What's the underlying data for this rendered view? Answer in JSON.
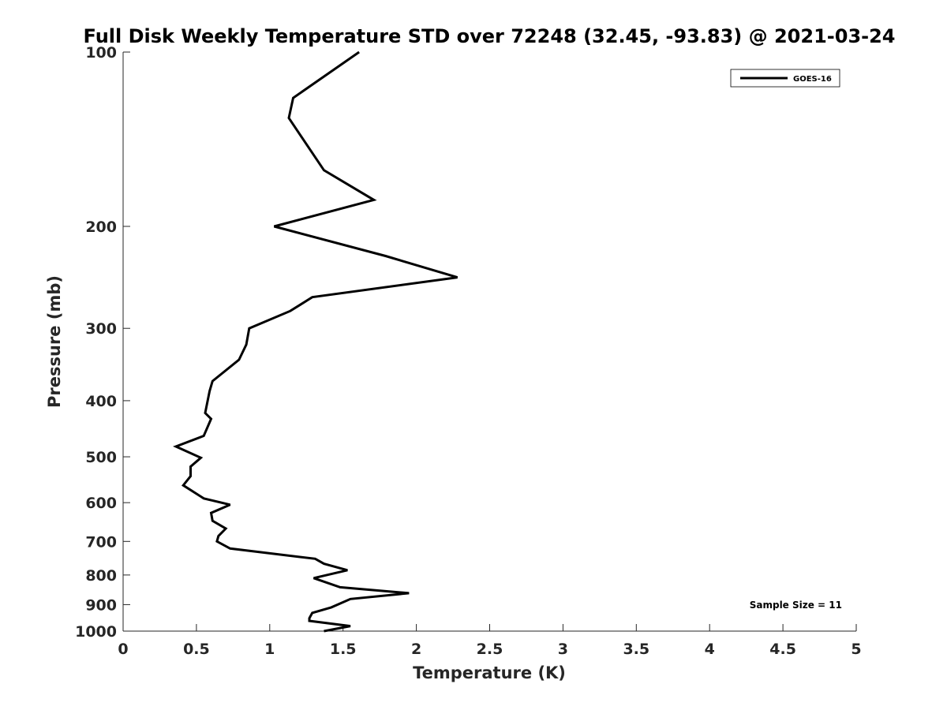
{
  "chart_data": {
    "type": "line",
    "title": "Full Disk Weekly Temperature STD over 72248 (32.45, -93.83) @ 2021-03-24",
    "xlabel": "Temperature (K)",
    "ylabel": "Pressure (mb)",
    "xlim": [
      0,
      5
    ],
    "ylim": [
      1000,
      100
    ],
    "y_scale": "log",
    "y_reversed": true,
    "grid": false,
    "legend_position": "top-right",
    "x_ticks": [
      0,
      0.5,
      1,
      1.5,
      2,
      2.5,
      3,
      3.5,
      4,
      4.5,
      5
    ],
    "x_tick_labels": [
      "0",
      "0.5",
      "1",
      "1.5",
      "2",
      "2.5",
      "3",
      "3.5",
      "4",
      "4.5",
      "5"
    ],
    "y_ticks": [
      100,
      200,
      300,
      400,
      500,
      600,
      700,
      800,
      900,
      1000
    ],
    "y_tick_labels": [
      "100",
      "200",
      "300",
      "400",
      "500",
      "600",
      "700",
      "800",
      "900",
      "1000"
    ],
    "series": [
      {
        "name": "GOES-16",
        "color": "#000000",
        "x": [
          1.61,
          1.16,
          1.13,
          1.37,
          1.71,
          1.03,
          1.79,
          2.28,
          1.29,
          1.14,
          0.86,
          0.84,
          0.79,
          0.61,
          0.59,
          0.56,
          0.6,
          0.55,
          0.36,
          0.53,
          0.46,
          0.46,
          0.41,
          0.55,
          0.73,
          0.6,
          0.61,
          0.7,
          0.65,
          0.64,
          0.73,
          1.31,
          1.37,
          1.53,
          1.3,
          1.48,
          1.95,
          1.55,
          1.42,
          1.29,
          1.27,
          1.27,
          1.55,
          1.37
        ],
        "y": [
          100,
          120,
          130,
          160,
          180,
          200,
          225,
          245,
          265,
          280,
          300,
          320,
          340,
          370,
          385,
          420,
          430,
          460,
          480,
          502,
          520,
          540,
          560,
          590,
          605,
          625,
          645,
          665,
          685,
          700,
          720,
          750,
          765,
          785,
          810,
          840,
          860,
          880,
          910,
          930,
          950,
          960,
          980,
          1000
        ]
      }
    ],
    "annotations": [
      "Sample Size = 11"
    ]
  }
}
